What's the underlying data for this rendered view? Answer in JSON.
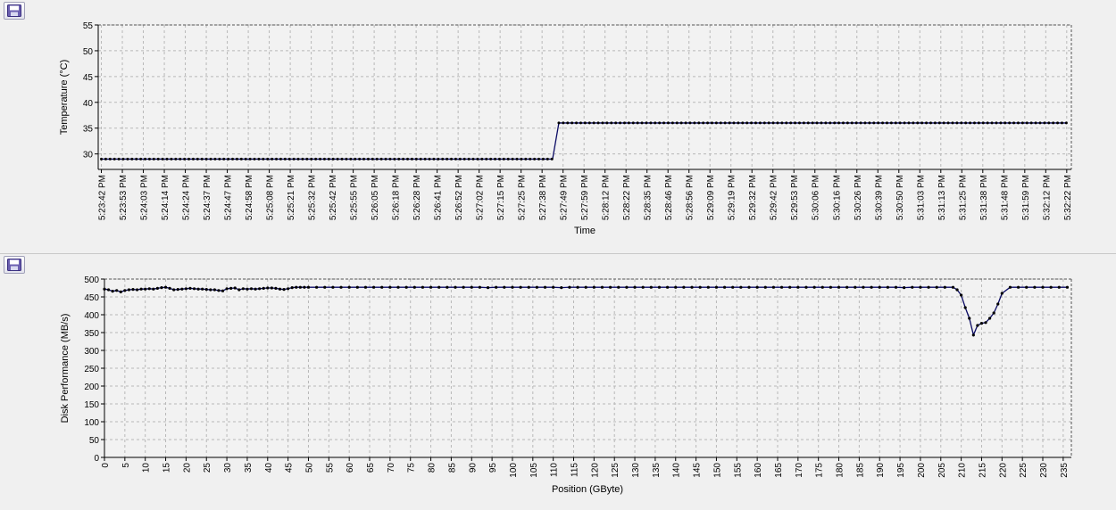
{
  "charts": [
    {
      "id": "temp",
      "save_icon": "floppy-disk-icon",
      "chart_data": {
        "type": "line",
        "xlabel": "Time",
        "ylabel": "Temperature (°C)",
        "ylim": [
          27,
          55
        ],
        "yticks": [
          30,
          35,
          40,
          45,
          50,
          55
        ],
        "grid": true,
        "line_color": "#0a0a64",
        "marker_color": "#000000",
        "categories": [
          "5:23:42 PM",
          "5:23:53 PM",
          "5:24:03 PM",
          "5:24:14 PM",
          "5:24:24 PM",
          "5:24:37 PM",
          "5:24:47 PM",
          "5:24:58 PM",
          "5:25:08 PM",
          "5:25:21 PM",
          "5:25:32 PM",
          "5:25:42 PM",
          "5:25:55 PM",
          "5:26:05 PM",
          "5:26:18 PM",
          "5:26:28 PM",
          "5:26:41 PM",
          "5:26:52 PM",
          "5:27:02 PM",
          "5:27:15 PM",
          "5:27:25 PM",
          "5:27:38 PM",
          "5:27:49 PM",
          "5:27:59 PM",
          "5:28:12 PM",
          "5:28:22 PM",
          "5:28:35 PM",
          "5:28:46 PM",
          "5:28:56 PM",
          "5:29:09 PM",
          "5:29:19 PM",
          "5:29:32 PM",
          "5:29:42 PM",
          "5:29:53 PM",
          "5:30:06 PM",
          "5:30:16 PM",
          "5:30:26 PM",
          "5:30:39 PM",
          "5:30:50 PM",
          "5:31:03 PM",
          "5:31:13 PM",
          "5:31:25 PM",
          "5:31:38 PM",
          "5:31:48 PM",
          "5:31:59 PM",
          "5:32:12 PM",
          "5:32:22 PM"
        ],
        "segments": [
          {
            "from": 0,
            "to": 21.5,
            "value": 29
          },
          {
            "from": 21.8,
            "to": 46,
            "value": 36
          }
        ]
      }
    },
    {
      "id": "disk",
      "save_icon": "floppy-disk-icon",
      "chart_data": {
        "type": "line",
        "xlabel": "Position (GByte)",
        "ylabel": "Disk Performance (MB/s)",
        "xlim": [
          0,
          237
        ],
        "ylim": [
          0,
          500
        ],
        "xticks": [
          0,
          5,
          10,
          15,
          20,
          25,
          30,
          35,
          40,
          45,
          50,
          55,
          60,
          65,
          70,
          75,
          80,
          85,
          90,
          95,
          100,
          105,
          110,
          115,
          120,
          125,
          130,
          135,
          140,
          145,
          150,
          155,
          160,
          165,
          170,
          175,
          180,
          185,
          190,
          195,
          200,
          205,
          210,
          215,
          220,
          225,
          230,
          235
        ],
        "yticks": [
          0,
          50,
          100,
          150,
          200,
          250,
          300,
          350,
          400,
          450,
          500
        ],
        "grid": true,
        "line_color": "#0a0a64",
        "marker_color": "#000000",
        "x": [
          0,
          1,
          2,
          3,
          4,
          5,
          6,
          7,
          8,
          9,
          10,
          11,
          12,
          13,
          14,
          15,
          16,
          17,
          18,
          19,
          20,
          21,
          22,
          23,
          24,
          25,
          26,
          27,
          28,
          29,
          30,
          31,
          32,
          33,
          34,
          35,
          36,
          37,
          38,
          39,
          40,
          41,
          42,
          43,
          44,
          45,
          46,
          47,
          48,
          49,
          50,
          52,
          54,
          56,
          58,
          60,
          62,
          64,
          66,
          68,
          70,
          72,
          74,
          76,
          78,
          80,
          82,
          84,
          86,
          88,
          90,
          92,
          94,
          96,
          98,
          100,
          102,
          104,
          106,
          108,
          110,
          112,
          114,
          116,
          118,
          120,
          122,
          124,
          126,
          128,
          130,
          132,
          134,
          136,
          138,
          140,
          142,
          144,
          146,
          148,
          150,
          152,
          154,
          156,
          158,
          160,
          162,
          164,
          166,
          168,
          170,
          172,
          174,
          176,
          178,
          180,
          182,
          184,
          186,
          188,
          190,
          192,
          194,
          196,
          198,
          200,
          202,
          204,
          206,
          208,
          209,
          210,
          211,
          212,
          213,
          214,
          215,
          216,
          217,
          218,
          219,
          220,
          222,
          224,
          226,
          228,
          230,
          232,
          234,
          236
        ],
        "y": [
          472,
          470,
          466,
          468,
          464,
          468,
          470,
          471,
          470,
          472,
          472,
          473,
          472,
          474,
          476,
          477,
          474,
          470,
          471,
          472,
          473,
          474,
          473,
          472,
          472,
          471,
          470,
          470,
          468,
          467,
          473,
          474,
          475,
          470,
          473,
          472,
          473,
          472,
          473,
          474,
          475,
          475,
          474,
          472,
          471,
          473,
          476,
          477,
          477,
          477,
          477,
          477,
          477,
          477,
          477,
          477,
          477,
          477,
          477,
          477,
          477,
          477,
          477,
          477,
          477,
          477,
          477,
          477,
          477,
          477,
          477,
          477,
          476,
          477,
          477,
          477,
          477,
          477,
          477,
          477,
          477,
          476,
          477,
          477,
          477,
          477,
          477,
          477,
          477,
          477,
          477,
          477,
          477,
          477,
          477,
          477,
          477,
          477,
          477,
          477,
          477,
          477,
          477,
          477,
          477,
          477,
          477,
          477,
          477,
          477,
          477,
          477,
          477,
          477,
          477,
          477,
          477,
          477,
          477,
          477,
          477,
          477,
          477,
          476,
          477,
          477,
          477,
          477,
          477,
          477,
          470,
          455,
          420,
          390,
          343,
          370,
          376,
          378,
          390,
          405,
          430,
          460,
          477,
          477,
          477,
          477,
          477,
          477,
          477,
          477
        ]
      }
    }
  ]
}
